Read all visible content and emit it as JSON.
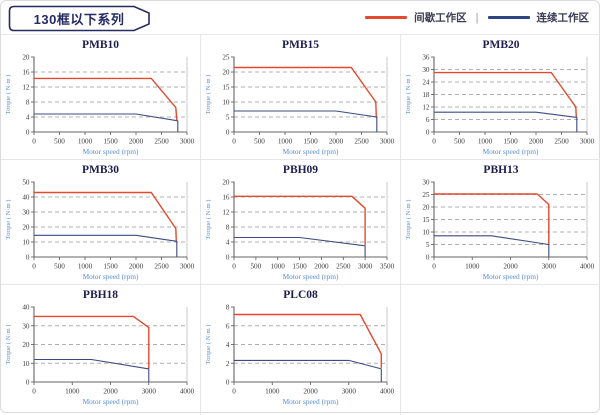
{
  "header": {
    "title": "130框以下系列",
    "legend": [
      {
        "label": "间歇工作区",
        "color_key": "intermittent"
      },
      {
        "label": "连续工作区",
        "color_key": "continuous"
      }
    ],
    "legend_separator": "|"
  },
  "colors": {
    "intermittent": "#e2492e",
    "continuous": "#2d4582",
    "curve_continuous": "#3c4c80",
    "axis_label": "#5b8fd4",
    "chart_title": "#1d1d4e",
    "grid": "#b0b0b0",
    "axis": "#666666",
    "plot_right_border": "#c8c8c8",
    "badge_border": "#252a63"
  },
  "chart_data": [
    {
      "type": "line",
      "title": "PMB10",
      "xlabel": "Motor speed (rpm)",
      "ylabel": "Torque ( N·m )",
      "xlim": [
        0,
        3000
      ],
      "xticks": [
        0,
        500,
        1000,
        1500,
        2000,
        2500,
        3000
      ],
      "ylim": [
        0,
        20
      ],
      "yticks": [
        0,
        4,
        8,
        12,
        16,
        20
      ],
      "grid": "horizontal-dashed",
      "legend_position": "none",
      "series": [
        {
          "name": "间歇工作区",
          "color_key": "intermittent",
          "points": [
            [
              0,
              14.3
            ],
            [
              2300,
              14.3
            ],
            [
              2780,
              6.5
            ],
            [
              2800,
              3.2
            ]
          ]
        },
        {
          "name": "连续工作区",
          "color_key": "continuous",
          "points": [
            [
              0,
              4.8
            ],
            [
              2000,
              4.8
            ],
            [
              2820,
              3.0
            ],
            [
              2820,
              0
            ]
          ]
        }
      ]
    },
    {
      "type": "line",
      "title": "PMB15",
      "xlabel": "Motor speed (rpm)",
      "ylabel": "Torque ( N·m )",
      "xlim": [
        0,
        3000
      ],
      "xticks": [
        0,
        500,
        1000,
        1500,
        2000,
        2500,
        3000
      ],
      "ylim": [
        0,
        25
      ],
      "yticks": [
        0,
        5,
        10,
        15,
        20,
        25
      ],
      "grid": "horizontal-dashed",
      "legend_position": "none",
      "series": [
        {
          "name": "间歇工作区",
          "color_key": "intermittent",
          "points": [
            [
              0,
              21.5
            ],
            [
              2300,
              21.5
            ],
            [
              2780,
              10
            ],
            [
              2790,
              5
            ]
          ]
        },
        {
          "name": "连续工作区",
          "color_key": "continuous",
          "points": [
            [
              0,
              7
            ],
            [
              2000,
              7
            ],
            [
              2800,
              5
            ],
            [
              2800,
              0
            ]
          ]
        }
      ]
    },
    {
      "type": "line",
      "title": "PMB20",
      "xlabel": "Motor speed (rpm)",
      "ylabel": "Torque ( N·m )",
      "xlim": [
        0,
        3000
      ],
      "xticks": [
        0,
        500,
        1000,
        1500,
        2000,
        2500,
        3000
      ],
      "ylim": [
        0,
        36
      ],
      "yticks": [
        0,
        6,
        12,
        18,
        24,
        30,
        36
      ],
      "grid": "horizontal-dashed",
      "legend_position": "none",
      "series": [
        {
          "name": "间歇工作区",
          "color_key": "intermittent",
          "points": [
            [
              0,
              28.5
            ],
            [
              2300,
              28.5
            ],
            [
              2780,
              12
            ],
            [
              2790,
              7
            ]
          ]
        },
        {
          "name": "连续工作区",
          "color_key": "continuous",
          "points": [
            [
              0,
              9.5
            ],
            [
              2000,
              9.5
            ],
            [
              2800,
              7
            ],
            [
              2800,
              0
            ]
          ]
        }
      ]
    },
    {
      "type": "line",
      "title": "PMB30",
      "xlabel": "Motor speed (rpm)",
      "ylabel": "Torque ( N·m )",
      "xlim": [
        0,
        3000
      ],
      "xticks": [
        0,
        500,
        1000,
        1500,
        2000,
        2500,
        3000
      ],
      "ylim": [
        0,
        50
      ],
      "yticks": [
        0,
        10,
        20,
        30,
        40,
        50
      ],
      "grid": "horizontal-dashed",
      "legend_position": "none",
      "series": [
        {
          "name": "间歇工作区",
          "color_key": "intermittent",
          "points": [
            [
              0,
              43
            ],
            [
              2300,
              43
            ],
            [
              2780,
              19
            ],
            [
              2790,
              10.5
            ]
          ]
        },
        {
          "name": "连续工作区",
          "color_key": "continuous",
          "points": [
            [
              0,
              14.5
            ],
            [
              2000,
              14.5
            ],
            [
              2800,
              10.5
            ],
            [
              2800,
              0
            ]
          ]
        }
      ]
    },
    {
      "type": "line",
      "title": "PBH09",
      "xlabel": "Motor speed (rpm)",
      "ylabel": "Torque ( N·m )",
      "xlim": [
        0,
        3500
      ],
      "xticks": [
        0,
        500,
        1000,
        1500,
        2000,
        2500,
        3000,
        3500
      ],
      "ylim": [
        0,
        20
      ],
      "yticks": [
        0,
        4,
        8,
        12,
        16,
        20
      ],
      "grid": "horizontal-dashed",
      "legend_position": "none",
      "series": [
        {
          "name": "间歇工作区",
          "color_key": "intermittent",
          "points": [
            [
              0,
              16.2
            ],
            [
              2700,
              16.2
            ],
            [
              3000,
              13
            ],
            [
              3000,
              3.2
            ]
          ]
        },
        {
          "name": "连续工作区",
          "color_key": "continuous",
          "points": [
            [
              0,
              5.2
            ],
            [
              1500,
              5.2
            ],
            [
              3000,
              3
            ],
            [
              3000,
              0
            ]
          ]
        }
      ]
    },
    {
      "type": "line",
      "title": "PBH13",
      "xlabel": "Motor speed (rpm)",
      "ylabel": "Torque ( N·m )",
      "xlim": [
        0,
        4000
      ],
      "xticks": [
        0,
        1000,
        2000,
        3000,
        4000
      ],
      "ylim": [
        0,
        30
      ],
      "yticks": [
        0,
        5,
        10,
        15,
        20,
        25,
        30
      ],
      "grid": "horizontal-dashed",
      "legend_position": "none",
      "series": [
        {
          "name": "间歇工作区",
          "color_key": "intermittent",
          "points": [
            [
              0,
              25.2
            ],
            [
              2700,
              25.2
            ],
            [
              3000,
              21
            ],
            [
              3000,
              5.2
            ]
          ]
        },
        {
          "name": "连续工作区",
          "color_key": "continuous",
          "points": [
            [
              0,
              8.5
            ],
            [
              1500,
              8.5
            ],
            [
              3000,
              5
            ],
            [
              3000,
              0
            ]
          ]
        }
      ]
    },
    {
      "type": "line",
      "title": "PBH18",
      "xlabel": "Motor speed (rpm)",
      "ylabel": "Torque ( N·m )",
      "xlim": [
        0,
        4000
      ],
      "xticks": [
        0,
        1000,
        2000,
        3000,
        4000
      ],
      "ylim": [
        0,
        40
      ],
      "yticks": [
        0,
        10,
        20,
        30,
        40
      ],
      "grid": "horizontal-dashed",
      "legend_position": "none",
      "series": [
        {
          "name": "间歇工作区",
          "color_key": "intermittent",
          "points": [
            [
              0,
              35
            ],
            [
              2600,
              35
            ],
            [
              3000,
              29
            ],
            [
              3000,
              7.2
            ]
          ]
        },
        {
          "name": "连续工作区",
          "color_key": "continuous",
          "points": [
            [
              0,
              12
            ],
            [
              1500,
              12
            ],
            [
              3000,
              7
            ],
            [
              3000,
              0
            ]
          ]
        }
      ]
    },
    {
      "type": "line",
      "title": "PLC08",
      "xlabel": "Motor speed (rpm)",
      "ylabel": "Torque ( N·m )",
      "xlim": [
        0,
        4000
      ],
      "xticks": [
        0,
        1000,
        2000,
        3000,
        4000
      ],
      "ylim": [
        0,
        8
      ],
      "yticks": [
        0,
        2,
        4,
        6,
        8
      ],
      "grid": "horizontal-dashed",
      "legend_position": "none",
      "series": [
        {
          "name": "间歇工作区",
          "color_key": "intermittent",
          "points": [
            [
              0,
              7.2
            ],
            [
              3300,
              7.2
            ],
            [
              3850,
              3
            ],
            [
              3850,
              1.5
            ]
          ]
        },
        {
          "name": "连续工作区",
          "color_key": "continuous",
          "points": [
            [
              0,
              2.3
            ],
            [
              3000,
              2.3
            ],
            [
              3850,
              1.4
            ],
            [
              3850,
              0
            ]
          ]
        }
      ]
    }
  ]
}
